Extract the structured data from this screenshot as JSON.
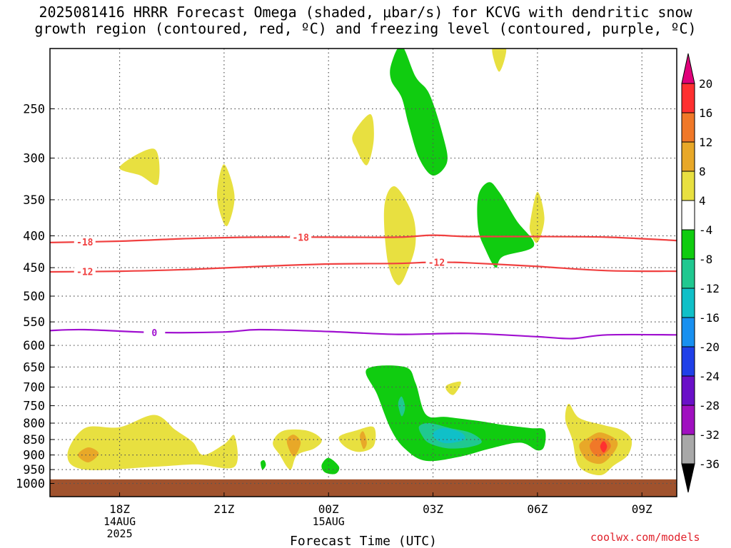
{
  "title": {
    "line1": "2025081416 HRRR Forecast Omega (shaded, μbar/s) for KCVG with dendritic snow",
    "line2": "growth region (contoured, red, ºC) and freezing level (contoured, purple, ºC)"
  },
  "footer": "coolwx.com/models",
  "chart_data": {
    "type": "time-height cross section",
    "xlabel": "Forecast Time (UTC)",
    "x_ticks": [
      {
        "hour": 2,
        "label": "18Z",
        "sub": [
          "14AUG",
          "2025"
        ]
      },
      {
        "hour": 5,
        "label": "21Z",
        "sub": []
      },
      {
        "hour": 8,
        "label": "00Z",
        "sub": [
          "15AUG"
        ]
      },
      {
        "hour": 11,
        "label": "03Z",
        "sub": []
      },
      {
        "hour": 14,
        "label": "06Z",
        "sub": []
      },
      {
        "hour": 17,
        "label": "09Z",
        "sub": []
      }
    ],
    "x_range_hours": [
      0,
      18
    ],
    "y_axis": "pressure (mb), log scale, inverted",
    "y_range": [
      1050,
      200
    ],
    "y_ticks": [
      250,
      300,
      350,
      400,
      450,
      500,
      550,
      600,
      650,
      700,
      750,
      800,
      850,
      900,
      950,
      1000
    ],
    "grid": "dotted horizontal lines at each pressure tick",
    "ground_band": {
      "from_mb": 985,
      "to_mb": 1050,
      "color": "#a0522d"
    },
    "colorbar": {
      "levels": [
        20,
        16,
        12,
        8,
        4,
        -4,
        -8,
        -12,
        -16,
        -20,
        -24,
        -28,
        -32,
        -36
      ],
      "colors": [
        "#e0007a",
        "#ff3030",
        "#f07828",
        "#e8a828",
        "#e8e040",
        "#ffffff",
        "#10cc10",
        "#20c890",
        "#10c0c8",
        "#1890f0",
        "#2040e8",
        "#6a10c8",
        "#a010c0",
        "#a8a8a8",
        "#000000"
      ],
      "top_triangle_color": "#e0007a",
      "bottom_triangle_color": "#000000"
    },
    "contours": [
      {
        "name": "-18",
        "color": "#f04040",
        "label_hours": [
          1.0,
          7.2
        ],
        "points": [
          [
            0,
            410
          ],
          [
            2,
            408
          ],
          [
            4,
            404
          ],
          [
            6,
            402
          ],
          [
            8,
            402
          ],
          [
            10,
            402
          ],
          [
            11,
            399
          ],
          [
            12,
            401
          ],
          [
            14,
            401
          ],
          [
            16,
            402
          ],
          [
            18,
            407
          ]
        ]
      },
      {
        "name": "-12",
        "color": "#f04040",
        "label_hours": [
          1.0,
          11.1
        ],
        "points": [
          [
            0,
            457
          ],
          [
            2,
            456
          ],
          [
            4,
            453
          ],
          [
            6,
            448
          ],
          [
            8,
            444
          ],
          [
            10,
            443
          ],
          [
            11,
            441
          ],
          [
            12,
            442
          ],
          [
            14,
            448
          ],
          [
            16,
            455
          ],
          [
            18,
            456
          ]
        ]
      },
      {
        "name": "0",
        "color": "#a010d0",
        "label_hours": [
          3.0
        ],
        "points": [
          [
            0,
            568
          ],
          [
            1,
            566
          ],
          [
            3,
            572
          ],
          [
            5,
            571
          ],
          [
            6,
            566
          ],
          [
            8,
            570
          ],
          [
            10,
            576
          ],
          [
            12,
            574
          ],
          [
            14,
            581
          ],
          [
            15,
            585
          ],
          [
            16,
            577
          ],
          [
            18,
            577
          ]
        ]
      }
    ],
    "omega_regions": [
      {
        "level": 4,
        "color": "#e8e040",
        "points": [
          [
            0.5,
            900
          ],
          [
            1.0,
            815
          ],
          [
            2.0,
            812
          ],
          [
            3.0,
            776
          ],
          [
            3.6,
            820
          ],
          [
            4.1,
            858
          ],
          [
            4.4,
            900
          ],
          [
            5.0,
            865
          ],
          [
            5.3,
            838
          ],
          [
            5.3,
            940
          ],
          [
            4.2,
            932
          ],
          [
            3.0,
            940
          ],
          [
            1.0,
            950
          ]
        ]
      },
      {
        "level": 8,
        "color": "#e8a828",
        "points": [
          [
            0.8,
            900
          ],
          [
            1.1,
            875
          ],
          [
            1.4,
            895
          ],
          [
            1.1,
            925
          ]
        ]
      },
      {
        "level": 4,
        "color": "#e8e040",
        "points": [
          [
            6.4,
            860
          ],
          [
            6.7,
            823
          ],
          [
            7.4,
            823
          ],
          [
            7.8,
            850
          ],
          [
            7.6,
            878
          ],
          [
            7.1,
            900
          ],
          [
            6.9,
            950
          ],
          [
            6.6,
            900
          ]
        ]
      },
      {
        "level": 8,
        "color": "#e8a828",
        "points": [
          [
            6.8,
            855
          ],
          [
            7.0,
            835
          ],
          [
            7.2,
            860
          ],
          [
            7.0,
            905
          ]
        ]
      },
      {
        "level": 4,
        "color": "#e8e040",
        "points": [
          [
            8.3,
            842
          ],
          [
            8.8,
            822
          ],
          [
            9.3,
            812
          ],
          [
            9.3,
            870
          ],
          [
            8.9,
            890
          ],
          [
            8.5,
            875
          ]
        ]
      },
      {
        "level": 8,
        "color": "#e8a828",
        "points": [
          [
            8.9,
            840
          ],
          [
            9.0,
            825
          ],
          [
            9.1,
            860
          ],
          [
            9.0,
            880
          ]
        ]
      },
      {
        "level": 4,
        "color": "#e8e040",
        "points": [
          [
            14.8,
            790
          ],
          [
            14.9,
            745
          ],
          [
            15.2,
            785
          ],
          [
            15.9,
            806
          ],
          [
            16.4,
            820
          ],
          [
            16.7,
            850
          ],
          [
            16.6,
            900
          ],
          [
            16.2,
            935
          ],
          [
            15.8,
            970
          ],
          [
            15.2,
            940
          ],
          [
            15.0,
            850
          ]
        ]
      },
      {
        "level": 8,
        "color": "#e8a828",
        "points": [
          [
            15.2,
            868
          ],
          [
            15.5,
            842
          ],
          [
            15.8,
            828
          ],
          [
            16.2,
            845
          ],
          [
            16.3,
            868
          ],
          [
            16.1,
            905
          ],
          [
            15.8,
            930
          ],
          [
            15.4,
            915
          ]
        ]
      },
      {
        "level": 12,
        "color": "#f07828",
        "points": [
          [
            15.5,
            868
          ],
          [
            15.7,
            845
          ],
          [
            16.0,
            852
          ],
          [
            16.1,
            875
          ],
          [
            15.8,
            905
          ],
          [
            15.6,
            895
          ]
        ]
      },
      {
        "level": 16,
        "color": "#ff3030",
        "points": [
          [
            15.8,
            872
          ],
          [
            15.9,
            855
          ],
          [
            16.0,
            872
          ],
          [
            15.9,
            892
          ]
        ]
      },
      {
        "level": 4,
        "color": "#e8e040",
        "points": [
          [
            11.4,
            695
          ],
          [
            11.8,
            687
          ],
          [
            11.6,
            720
          ],
          [
            11.4,
            710
          ]
        ]
      },
      {
        "level": 4,
        "color": "#e8e040",
        "points": [
          [
            2.0,
            310
          ],
          [
            3.0,
            290
          ],
          [
            3.1,
            330
          ],
          [
            2.6,
            320
          ]
        ]
      },
      {
        "level": 4,
        "color": "#e8e040",
        "points": [
          [
            4.8,
            340
          ],
          [
            5.0,
            307
          ],
          [
            5.3,
            345
          ],
          [
            5.1,
            385
          ],
          [
            4.9,
            370
          ]
        ]
      },
      {
        "level": 4,
        "color": "#e8e040",
        "points": [
          [
            8.7,
            275
          ],
          [
            9.2,
            255
          ],
          [
            9.3,
            280
          ],
          [
            9.1,
            308
          ],
          [
            8.8,
            290
          ]
        ]
      },
      {
        "level": 4,
        "color": "#e8e040",
        "points": [
          [
            9.6,
            360
          ],
          [
            9.9,
            333
          ],
          [
            10.4,
            368
          ],
          [
            10.5,
            410
          ],
          [
            10.3,
            450
          ],
          [
            10.0,
            480
          ],
          [
            9.7,
            440
          ]
        ]
      },
      {
        "level": 4,
        "color": "#e8e040",
        "points": [
          [
            13.8,
            378
          ],
          [
            14.0,
            340
          ],
          [
            14.2,
            375
          ],
          [
            14.0,
            410
          ],
          [
            13.8,
            395
          ]
        ]
      },
      {
        "level": 4,
        "color": "#e8e040",
        "points": [
          [
            12.7,
            200
          ],
          [
            13.1,
            200
          ],
          [
            12.9,
            218
          ]
        ]
      },
      {
        "level": -4,
        "color": "#10cc10",
        "points": [
          [
            9.8,
            212
          ],
          [
            10.1,
            198
          ],
          [
            10.5,
            222
          ],
          [
            10.9,
            237
          ],
          [
            11.3,
            278
          ],
          [
            11.4,
            305
          ],
          [
            11.0,
            320
          ],
          [
            10.6,
            300
          ],
          [
            10.3,
            265
          ],
          [
            10.1,
            240
          ],
          [
            9.8,
            225
          ]
        ]
      },
      {
        "level": -4,
        "color": "#10cc10",
        "points": [
          [
            12.3,
            345
          ],
          [
            12.6,
            328
          ],
          [
            12.9,
            340
          ],
          [
            13.4,
            378
          ],
          [
            13.9,
            415
          ],
          [
            13.0,
            432
          ],
          [
            12.8,
            450
          ],
          [
            12.5,
            420
          ],
          [
            12.3,
            390
          ]
        ]
      },
      {
        "level": -4,
        "color": "#10cc10",
        "points": [
          [
            9.1,
            655
          ],
          [
            10.2,
            650
          ],
          [
            10.5,
            690
          ],
          [
            10.8,
            775
          ],
          [
            11.4,
            782
          ],
          [
            12.4,
            795
          ],
          [
            13.0,
            805
          ],
          [
            13.8,
            815
          ],
          [
            14.2,
            820
          ],
          [
            14.2,
            870
          ],
          [
            14.0,
            885
          ],
          [
            13.5,
            860
          ],
          [
            12.6,
            880
          ],
          [
            11.8,
            905
          ],
          [
            10.8,
            920
          ],
          [
            10.2,
            880
          ],
          [
            9.8,
            820
          ],
          [
            9.4,
            720
          ]
        ]
      },
      {
        "level": -8,
        "color": "#20c890",
        "points": [
          [
            10.6,
            810
          ],
          [
            10.9,
            800
          ],
          [
            11.5,
            815
          ],
          [
            12.1,
            830
          ],
          [
            12.4,
            858
          ],
          [
            12.0,
            875
          ],
          [
            11.4,
            878
          ],
          [
            10.9,
            862
          ],
          [
            10.7,
            840
          ]
        ]
      },
      {
        "level": -8,
        "color": "#20c890",
        "points": [
          [
            10.0,
            745
          ],
          [
            10.1,
            725
          ],
          [
            10.2,
            755
          ],
          [
            10.1,
            780
          ]
        ]
      },
      {
        "level": -12,
        "color": "#10c0c8",
        "points": [
          [
            11.0,
            830
          ],
          [
            11.3,
            815
          ],
          [
            11.8,
            828
          ],
          [
            11.9,
            850
          ],
          [
            11.4,
            862
          ],
          [
            11.1,
            850
          ]
        ]
      },
      {
        "level": -4,
        "color": "#10cc10",
        "points": [
          [
            7.8,
            935
          ],
          [
            8.0,
            910
          ],
          [
            8.3,
            940
          ],
          [
            8.2,
            965
          ],
          [
            7.9,
            960
          ]
        ]
      },
      {
        "level": -4,
        "color": "#10cc10",
        "points": [
          [
            6.05,
            925
          ],
          [
            6.15,
            918
          ],
          [
            6.2,
            935
          ],
          [
            6.1,
            950
          ]
        ]
      }
    ]
  }
}
